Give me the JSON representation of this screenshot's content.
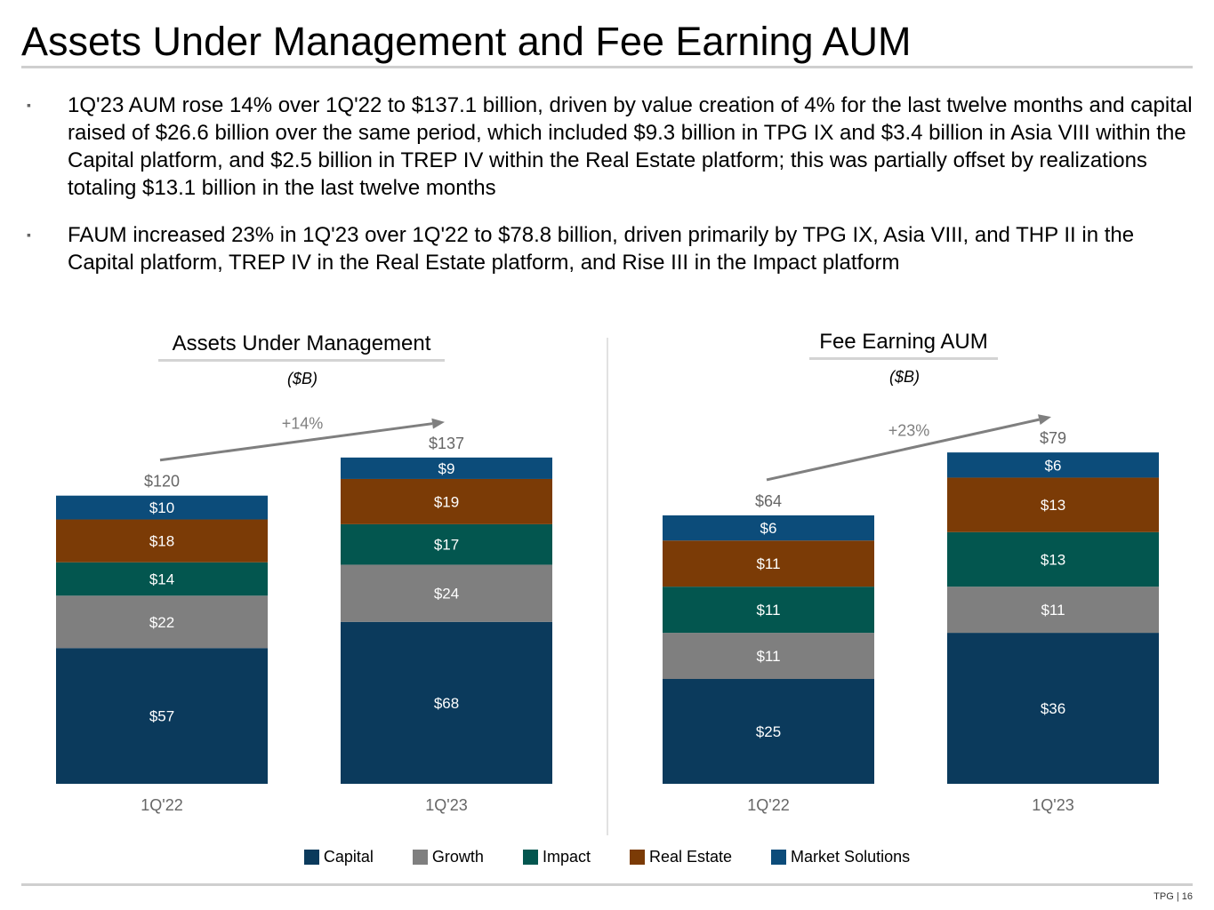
{
  "page": {
    "title": "Assets Under Management and Fee Earning AUM",
    "bullets": [
      "1Q'23 AUM rose 14% over 1Q'22 to $137.1 billion, driven by value creation of 4% for the last twelve months and capital raised of $26.6 billion over the same period, which included $9.3 billion in TPG IX and $3.4 billion in Asia VIII within the Capital platform, and $2.5 billion in TREP IV within the Real Estate platform; this was partially offset by realizations totaling $13.1 billion in the last twelve months",
      "FAUM increased 23% in 1Q'23 over 1Q'22 to $78.8 billion, driven primarily by TPG IX, Asia VIII, and THP II in the Capital platform, TREP IV in the Real Estate platform, and Rise III in the Impact platform"
    ],
    "bullet_marker": "▪",
    "footer": "TPG | 16"
  },
  "colors": {
    "Capital": "#0b3a5c",
    "Growth": "#7f7f7f",
    "Impact": "#03564f",
    "Real Estate": "#7b3b06",
    "Market Solutions": "#0c4c7a",
    "label": "#ffffff",
    "annotation": "#7f7f7f",
    "axis_text": "#666666"
  },
  "legend": [
    "Capital",
    "Growth",
    "Impact",
    "Real Estate",
    "Market Solutions"
  ],
  "chart_data": [
    {
      "type": "bar",
      "stacked": true,
      "title": "Assets Under Management",
      "subtitle": "($B)",
      "categories": [
        "1Q'22",
        "1Q'23"
      ],
      "series": [
        {
          "name": "Capital",
          "values": [
            57,
            68
          ],
          "labels": [
            "$57",
            "$68"
          ]
        },
        {
          "name": "Growth",
          "values": [
            22,
            24
          ],
          "labels": [
            "$22",
            "$24"
          ]
        },
        {
          "name": "Impact",
          "values": [
            14,
            17
          ],
          "labels": [
            "$14",
            "$17"
          ]
        },
        {
          "name": "Real Estate",
          "values": [
            18,
            19
          ],
          "labels": [
            "$18",
            "$19"
          ]
        },
        {
          "name": "Market Solutions",
          "values": [
            10,
            9
          ],
          "labels": [
            "$10",
            "$9"
          ]
        }
      ],
      "totals": [
        120,
        137
      ],
      "total_labels": [
        "$120",
        "$137"
      ],
      "growth_label": "+14%",
      "ylim": [
        0,
        137
      ]
    },
    {
      "type": "bar",
      "stacked": true,
      "title": "Fee Earning AUM",
      "subtitle": "($B)",
      "categories": [
        "1Q'22",
        "1Q'23"
      ],
      "series": [
        {
          "name": "Capital",
          "values": [
            25,
            36
          ],
          "labels": [
            "$25",
            "$36"
          ]
        },
        {
          "name": "Growth",
          "values": [
            11,
            11
          ],
          "labels": [
            "$11",
            "$11"
          ]
        },
        {
          "name": "Impact",
          "values": [
            11,
            13
          ],
          "labels": [
            "$11",
            "$13"
          ]
        },
        {
          "name": "Real Estate",
          "values": [
            11,
            13
          ],
          "labels": [
            "$11",
            "$13"
          ]
        },
        {
          "name": "Market Solutions",
          "values": [
            6,
            6
          ],
          "labels": [
            "$6",
            "$6"
          ]
        }
      ],
      "totals": [
        64,
        79
      ],
      "total_labels": [
        "$64",
        "$79"
      ],
      "growth_label": "+23%",
      "ylim": [
        0,
        79
      ]
    }
  ]
}
